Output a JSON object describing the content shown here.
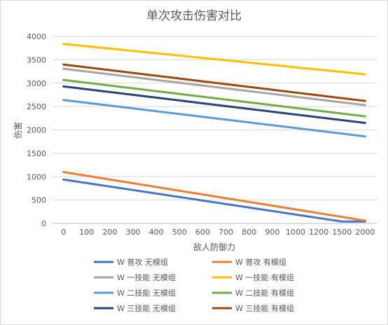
{
  "chart_data": {
    "type": "line",
    "title": "单次攻击伤害对比",
    "xlabel": "敌人防御力",
    "ylabel": "伤害",
    "ylim": [
      0,
      4000
    ],
    "yticks": [
      0,
      500,
      1000,
      1500,
      2000,
      2500,
      3000,
      3500,
      4000
    ],
    "categories": [
      "0",
      "100",
      "200",
      "300",
      "400",
      "500",
      "600",
      "700",
      "800",
      "900",
      "1000",
      "1200",
      "1500",
      "2000"
    ],
    "grid": true,
    "legend_position": "bottom",
    "series": [
      {
        "name": "W 普攻 无模组",
        "color": "#4472c4",
        "values": [
          940,
          865,
          790,
          715,
          640,
          565,
          490,
          415,
          340,
          265,
          190,
          115,
          40,
          40
        ]
      },
      {
        "name": "W 普攻 有模组",
        "color": "#ed7d31",
        "values": [
          1100,
          1020,
          940,
          860,
          780,
          700,
          620,
          540,
          460,
          380,
          300,
          220,
          140,
          60
        ]
      },
      {
        "name": "W 一技能 无模组",
        "color": "#a5a5a5",
        "values": [
          3310,
          3250,
          3190,
          3130,
          3070,
          3010,
          2950,
          2890,
          2830,
          2770,
          2710,
          2650,
          2590,
          2530
        ]
      },
      {
        "name": "W 一技能 有模组",
        "color": "#ffc000",
        "values": [
          3840,
          3790,
          3740,
          3690,
          3640,
          3590,
          3540,
          3490,
          3440,
          3390,
          3340,
          3290,
          3240,
          3190
        ]
      },
      {
        "name": "W 二技能 无模组",
        "color": "#5b9bd5",
        "values": [
          2640,
          2580,
          2520,
          2460,
          2400,
          2340,
          2280,
          2220,
          2160,
          2100,
          2040,
          1980,
          1920,
          1860
        ]
      },
      {
        "name": "W 二技能 有模组",
        "color": "#70ad47",
        "values": [
          3070,
          3010,
          2950,
          2890,
          2830,
          2770,
          2710,
          2650,
          2590,
          2530,
          2470,
          2410,
          2350,
          2290
        ]
      },
      {
        "name": "W 三技能 无模组",
        "color": "#264478",
        "values": [
          2930,
          2870,
          2810,
          2750,
          2690,
          2630,
          2570,
          2510,
          2450,
          2390,
          2330,
          2270,
          2210,
          2150
        ]
      },
      {
        "name": "W 三技能 有模组",
        "color": "#9e480e",
        "values": [
          3400,
          3340,
          3280,
          3220,
          3160,
          3100,
          3040,
          2980,
          2920,
          2860,
          2800,
          2740,
          2680,
          2620
        ]
      }
    ]
  }
}
